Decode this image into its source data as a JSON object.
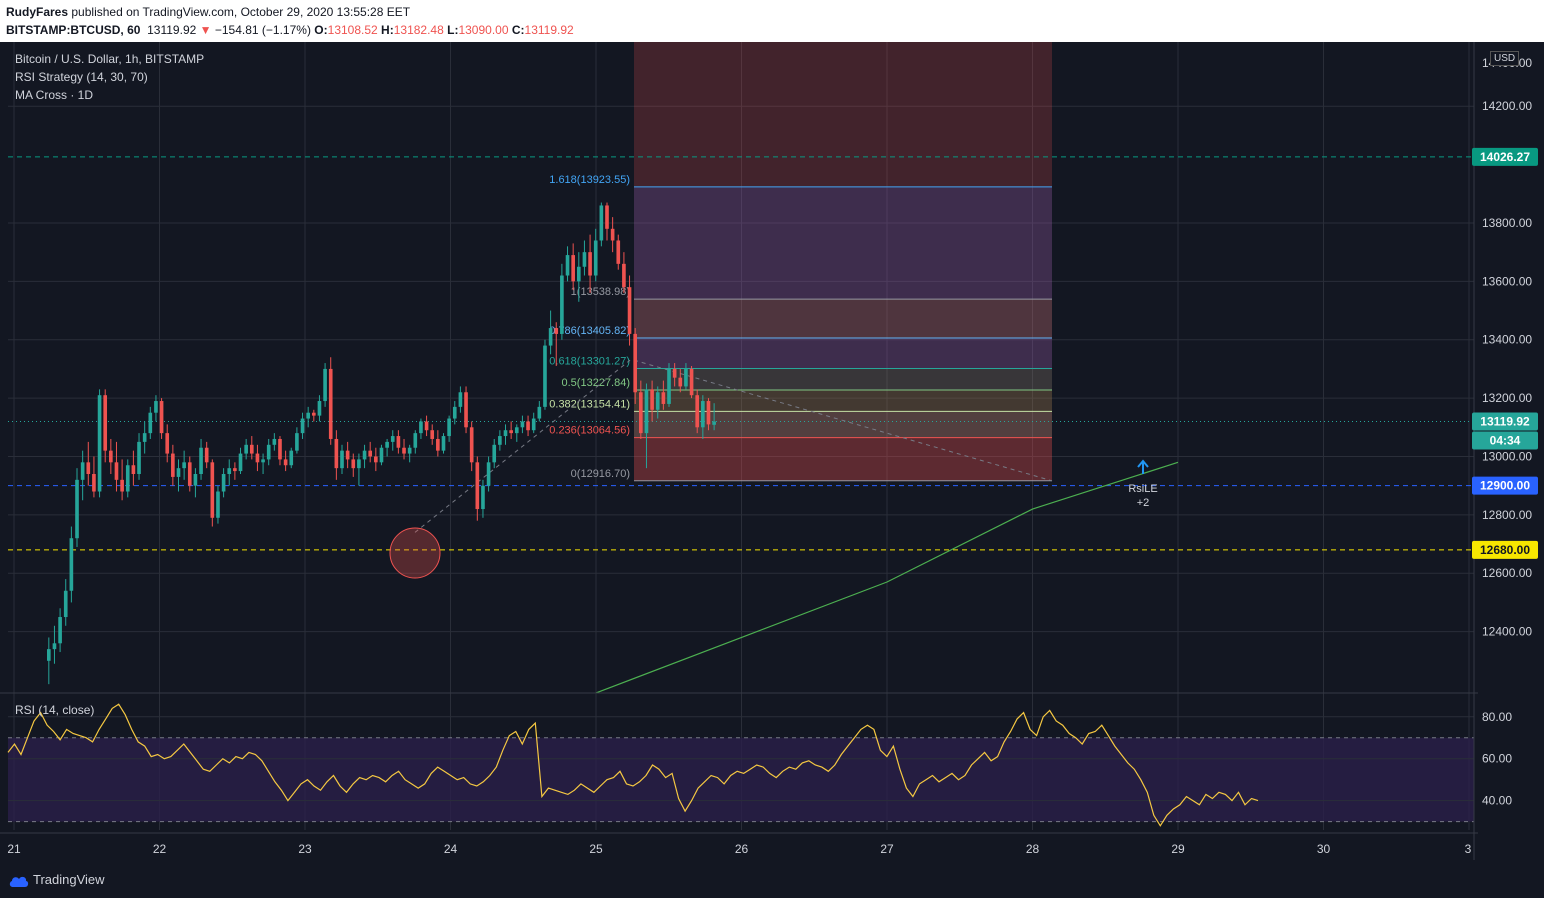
{
  "header": {
    "publisher": "RudyFares",
    "published_text": "published on TradingView.com, October 29, 2020 13:55:28 EET",
    "symbol": "BITSTAMP:BTCUSD, 60",
    "last": "13119.92",
    "change_arrow": "▼",
    "change": "−154.81 (−1.17%)",
    "o_label": "O:",
    "o": "13108.52",
    "h_label": "H:",
    "h": "13182.48",
    "l_label": "L:",
    "l": "13090.00",
    "c_label": "C:",
    "c": "13119.92"
  },
  "legend": {
    "title": "Bitcoin / U.S. Dollar, 1h, BITSTAMP",
    "strategy": "RSI Strategy (14, 30, 70)",
    "ma": "MA Cross · 1D",
    "rsi": "RSI (14, close)"
  },
  "currency": "USD",
  "footer": {
    "brand": "TradingView"
  },
  "colors": {
    "background": "#131722",
    "up": "#26a69a",
    "down": "#ef5350",
    "rsi_line": "#f5c842",
    "rsi_band": "#2a1f4a",
    "ma_line": "#4caf50",
    "level_green": "#089981",
    "level_yellow": "#f7e600",
    "level_blue": "#2962ff"
  },
  "chart_data": [
    {
      "type": "candlestick",
      "title": "Bitcoin / U.S. Dollar, 1h, BITSTAMP",
      "x_ticks": [
        "21",
        "22",
        "23",
        "24",
        "25",
        "26",
        "27",
        "28",
        "29",
        "30",
        "3"
      ],
      "ylim": [
        12200,
        14420
      ],
      "y_ticks": [
        "12400.00",
        "12600.00",
        "12800.00",
        "13000.00",
        "13200.00",
        "13400.00",
        "13600.00",
        "13800.00",
        "14200.00"
      ],
      "price_badges": [
        {
          "label": "14026.27",
          "value": 14026.27,
          "style": "green"
        },
        {
          "label": "13119.92",
          "value": 13119.92,
          "style": "teal"
        },
        {
          "label": "04:34",
          "value": null,
          "style": "teal-countdown"
        },
        {
          "label": "12900.00",
          "value": 12900.0,
          "style": "blue"
        },
        {
          "label": "12680.00",
          "value": 12680.0,
          "style": "yellow"
        }
      ],
      "horizontal_levels": [
        {
          "value": 14026.27,
          "color": "#089981",
          "style": "dashed"
        },
        {
          "value": 13119.92,
          "color": "#26a69a",
          "style": "dotted"
        },
        {
          "value": 12900.0,
          "color": "#2962ff",
          "style": "dashed"
        },
        {
          "value": 12680.0,
          "color": "#f7e600",
          "style": "dashed"
        }
      ],
      "candles_hourly_ohlc": [
        [
          12300,
          12380,
          12220,
          12340
        ],
        [
          12340,
          12420,
          12290,
          12360
        ],
        [
          12360,
          12480,
          12330,
          12450
        ],
        [
          12450,
          12580,
          12420,
          12540
        ],
        [
          12540,
          12760,
          12500,
          12720
        ],
        [
          12720,
          12960,
          12690,
          12920
        ],
        [
          12920,
          13020,
          12850,
          12980
        ],
        [
          12980,
          13050,
          12900,
          12940
        ],
        [
          12940,
          13000,
          12860,
          12880
        ],
        [
          12880,
          13230,
          12860,
          13210
        ],
        [
          13210,
          13230,
          12980,
          13020
        ],
        [
          13020,
          13060,
          12940,
          12980
        ],
        [
          12980,
          13050,
          12880,
          12920
        ],
        [
          12920,
          12990,
          12850,
          12880
        ],
        [
          12880,
          12990,
          12860,
          12970
        ],
        [
          12970,
          13020,
          12900,
          12940
        ],
        [
          12940,
          13080,
          12920,
          13050
        ],
        [
          13050,
          13120,
          13010,
          13080
        ],
        [
          13080,
          13170,
          13060,
          13150
        ],
        [
          13150,
          13210,
          13120,
          13190
        ],
        [
          13190,
          13200,
          13060,
          13080
        ],
        [
          13080,
          13110,
          12980,
          13010
        ],
        [
          13010,
          13040,
          12900,
          12930
        ],
        [
          12930,
          12990,
          12880,
          12960
        ],
        [
          12960,
          13020,
          12920,
          12980
        ],
        [
          12980,
          13000,
          12880,
          12900
        ],
        [
          12900,
          12960,
          12860,
          12940
        ],
        [
          12940,
          13060,
          12920,
          13030
        ],
        [
          13030,
          13050,
          12960,
          12980
        ],
        [
          12980,
          12990,
          12760,
          12790
        ],
        [
          12790,
          12900,
          12770,
          12880
        ],
        [
          12880,
          12960,
          12860,
          12940
        ],
        [
          12940,
          12990,
          12900,
          12960
        ],
        [
          12960,
          12980,
          12920,
          12950
        ],
        [
          12950,
          13030,
          12940,
          13010
        ],
        [
          13010,
          13060,
          12990,
          13040
        ],
        [
          13040,
          13070,
          12990,
          13010
        ],
        [
          13010,
          13040,
          12950,
          12980
        ],
        [
          12980,
          13010,
          12940,
          12990
        ],
        [
          12990,
          13060,
          12970,
          13040
        ],
        [
          13040,
          13080,
          13020,
          13060
        ],
        [
          13060,
          13070,
          12970,
          12990
        ],
        [
          12990,
          13020,
          12950,
          12970
        ],
        [
          12970,
          13030,
          12960,
          13020
        ],
        [
          13020,
          13100,
          13010,
          13080
        ],
        [
          13080,
          13150,
          13060,
          13130
        ],
        [
          13130,
          13170,
          13100,
          13150
        ],
        [
          13150,
          13160,
          13120,
          13140
        ],
        [
          13140,
          13210,
          13120,
          13190
        ],
        [
          13190,
          13320,
          13170,
          13300
        ],
        [
          13300,
          13340,
          13040,
          13060
        ],
        [
          13060,
          13090,
          12920,
          12960
        ],
        [
          12960,
          13040,
          12940,
          13020
        ],
        [
          13020,
          13050,
          12960,
          12990
        ],
        [
          12990,
          13010,
          12930,
          12960
        ],
        [
          12960,
          13010,
          12900,
          12990
        ],
        [
          12990,
          13040,
          12960,
          13020
        ],
        [
          13020,
          13050,
          12980,
          13000
        ],
        [
          13000,
          13030,
          12950,
          12980
        ],
        [
          12980,
          13040,
          12970,
          13030
        ],
        [
          13030,
          13060,
          13000,
          13050
        ],
        [
          13050,
          13090,
          13020,
          13070
        ],
        [
          13070,
          13090,
          13010,
          13030
        ],
        [
          13030,
          13060,
          12990,
          13010
        ],
        [
          13010,
          13040,
          12980,
          13030
        ],
        [
          13030,
          13090,
          13010,
          13080
        ],
        [
          13080,
          13130,
          13060,
          13120
        ],
        [
          13120,
          13140,
          13070,
          13090
        ],
        [
          13090,
          13110,
          13040,
          13060
        ],
        [
          13060,
          13090,
          13000,
          13020
        ],
        [
          13020,
          13080,
          13010,
          13070
        ],
        [
          13070,
          13140,
          13050,
          13130
        ],
        [
          13130,
          13190,
          13110,
          13170
        ],
        [
          13170,
          13240,
          13150,
          13220
        ],
        [
          13220,
          13240,
          13080,
          13100
        ],
        [
          13100,
          13120,
          12950,
          12980
        ],
        [
          12980,
          13000,
          12780,
          12820
        ],
        [
          12820,
          12920,
          12790,
          12900
        ],
        [
          12900,
          13000,
          12880,
          12980
        ],
        [
          12980,
          13060,
          12960,
          13040
        ],
        [
          13040,
          13090,
          13020,
          13070
        ],
        [
          13070,
          13110,
          13040,
          13090
        ],
        [
          13090,
          13120,
          13060,
          13080
        ],
        [
          13080,
          13110,
          13050,
          13100
        ],
        [
          13100,
          13140,
          13080,
          13120
        ],
        [
          13120,
          13140,
          13070,
          13090
        ],
        [
          13090,
          13150,
          13080,
          13130
        ],
        [
          13130,
          13190,
          13120,
          13170
        ],
        [
          13170,
          13400,
          13160,
          13380
        ],
        [
          13380,
          13500,
          13350,
          13440
        ],
        [
          13440,
          13460,
          13310,
          13420
        ],
        [
          13420,
          13660,
          13400,
          13620
        ],
        [
          13620,
          13720,
          13600,
          13690
        ],
        [
          13690,
          13730,
          13570,
          13600
        ],
        [
          13600,
          13700,
          13530,
          13650
        ],
        [
          13650,
          13740,
          13620,
          13700
        ],
        [
          13700,
          13760,
          13560,
          13620
        ],
        [
          13620,
          13780,
          13600,
          13740
        ],
        [
          13740,
          13870,
          13720,
          13860
        ],
        [
          13860,
          13870,
          13740,
          13780
        ],
        [
          13780,
          13820,
          13700,
          13740
        ],
        [
          13740,
          13760,
          13640,
          13660
        ],
        [
          13660,
          13700,
          13560,
          13580
        ],
        [
          13580,
          13620,
          13380,
          13420
        ],
        [
          13420,
          13440,
          13180,
          13220
        ],
        [
          13220,
          13260,
          13060,
          13080
        ],
        [
          13080,
          13250,
          12960,
          13230
        ],
        [
          13230,
          13260,
          13120,
          13160
        ],
        [
          13160,
          13240,
          13130,
          13220
        ],
        [
          13220,
          13260,
          13160,
          13180
        ],
        [
          13180,
          13320,
          13170,
          13300
        ],
        [
          13300,
          13320,
          13240,
          13270
        ],
        [
          13270,
          13300,
          13220,
          13240
        ],
        [
          13240,
          13320,
          13230,
          13300
        ],
        [
          13300,
          13310,
          13200,
          13210
        ],
        [
          13210,
          13230,
          13080,
          13100
        ],
        [
          13100,
          13210,
          13060,
          13190
        ],
        [
          13190,
          13200,
          13090,
          13110
        ],
        [
          13108.52,
          13182.48,
          13090,
          13119.92
        ]
      ]
    },
    {
      "type": "fibonacci",
      "levels": [
        {
          "label": "1.618(13923.55)",
          "value": 13923.55
        },
        {
          "label": "1(13538.98)",
          "value": 13538.98
        },
        {
          "label": "0.786(13405.82)",
          "value": 13405.82
        },
        {
          "label": "0.618(13301.27)",
          "value": 13301.27
        },
        {
          "label": "0.5(13227.84)",
          "value": 13227.84
        },
        {
          "label": "0.382(13154.41)",
          "value": 13154.41
        },
        {
          "label": "0.236(13064.56)",
          "value": 13064.56
        },
        {
          "label": "0(12916.70)",
          "value": 12916.7
        }
      ]
    },
    {
      "type": "line",
      "name": "MA Cross · 1D",
      "points": [
        {
          "x": "25",
          "y": 12190
        },
        {
          "x": "27",
          "y": 12570
        },
        {
          "x": "28",
          "y": 12820
        },
        {
          "x": "29",
          "y": 12980
        }
      ]
    },
    {
      "type": "annotation",
      "label": "RsiLE",
      "sublabel": "+2"
    },
    {
      "type": "line",
      "name": "RSI (14, close)",
      "ylim": [
        26,
        88
      ],
      "y_ticks": [
        "40.00",
        "60.00",
        "80.00"
      ],
      "bands": [
        30,
        70
      ],
      "values": [
        63,
        67,
        62,
        70,
        78,
        82,
        76,
        73,
        69,
        74,
        72,
        71,
        70,
        68,
        74,
        79,
        84,
        86,
        81,
        74,
        68,
        66,
        61,
        62,
        60,
        61,
        64,
        67,
        63,
        59,
        55,
        54,
        57,
        60,
        58,
        61,
        60,
        63,
        62,
        59,
        54,
        49,
        45,
        40,
        44,
        48,
        50,
        47,
        45,
        49,
        52,
        47,
        44,
        48,
        51,
        50,
        52,
        51,
        49,
        52,
        54,
        50,
        48,
        46,
        48,
        53,
        56,
        54,
        52,
        50,
        51,
        48,
        47,
        49,
        52,
        56,
        64,
        71,
        73,
        67,
        74,
        77,
        42,
        46,
        45,
        44,
        43,
        45,
        48,
        46,
        44,
        47,
        50,
        51,
        54,
        48,
        47,
        49,
        52,
        57,
        55,
        51,
        53,
        41,
        35,
        40,
        46,
        49,
        52,
        51,
        48,
        52,
        54,
        53,
        55,
        57,
        56,
        53,
        51,
        54,
        56,
        55,
        58,
        59,
        57,
        56,
        54,
        57,
        62,
        66,
        70,
        74,
        76,
        74,
        64,
        61,
        66,
        55,
        46,
        42,
        48,
        50,
        52,
        49,
        51,
        53,
        50,
        52,
        57,
        60,
        63,
        59,
        61,
        68,
        73,
        79,
        82,
        74,
        71,
        80,
        83,
        78,
        76,
        72,
        70,
        67,
        72,
        73,
        76,
        71,
        66,
        62,
        58,
        55,
        50,
        44,
        33,
        28,
        33,
        36,
        38,
        42,
        40,
        38,
        43,
        41,
        44,
        43,
        40,
        44,
        38,
        41,
        40
      ]
    }
  ]
}
